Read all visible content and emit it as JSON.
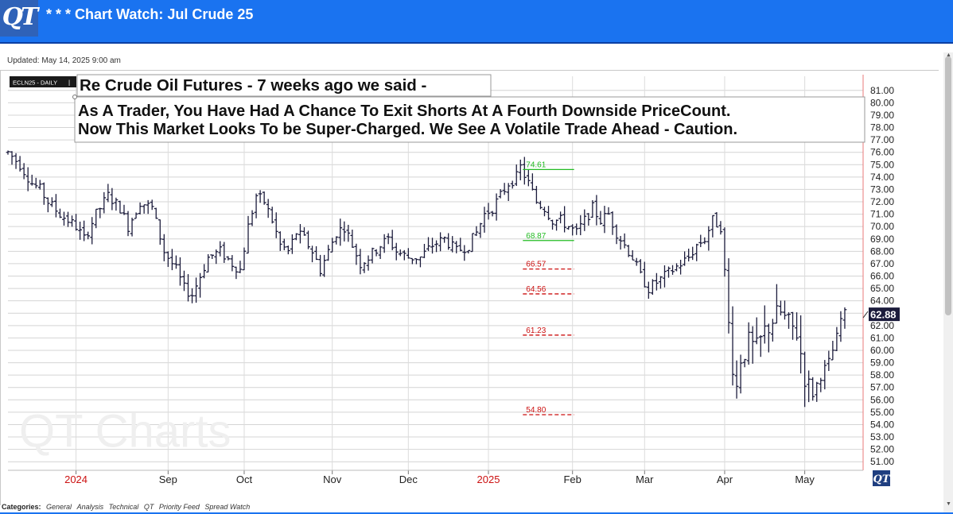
{
  "header": {
    "logo_text": "QT",
    "title": "* * * Chart Watch: Jul Crude 25",
    "updated": "Updated: May 14, 2025 9:00 am"
  },
  "footer": {
    "label": "Categories:",
    "items": [
      "General",
      "Analysis",
      "Technical",
      "QT",
      "Priority Feed",
      "Spread Watch"
    ]
  },
  "colors": {
    "header_bg": "#1a73f0",
    "bar_color": "#1c1c3c",
    "green_level": "#22bb22",
    "red_level": "#cc1111",
    "year_label": "#cc1111",
    "price_box": "#1c1c3c"
  },
  "chart_data": {
    "type": "ohlc",
    "symbol_label": "ECLN25 - DAILY",
    "annotation_lines": [
      "Re Crude Oil Futures - 7 weeks ago we said  -",
      "As A Trader, You Have Had A Chance To Exit Shorts At A Fourth Downside PriceCount.",
      "Now This Market Looks To be Super-Charged. We See A Volatile Trade Ahead - Caution."
    ],
    "watermark": "QT Charts",
    "corner_logo": "QT",
    "ylim": [
      50.5,
      81.5
    ],
    "yticks": [
      81,
      80,
      79,
      78,
      77,
      76,
      75,
      74,
      73,
      72,
      71,
      70,
      69,
      68,
      67,
      66,
      65,
      64,
      63,
      62,
      61,
      60,
      59,
      58,
      57,
      56,
      55,
      54,
      53,
      52,
      51
    ],
    "x_domain": [
      0,
      210
    ],
    "x_labels": [
      {
        "label": "2024",
        "x": 17,
        "year": true
      },
      {
        "label": "Sep",
        "x": 40
      },
      {
        "label": "Oct",
        "x": 59
      },
      {
        "label": "Nov",
        "x": 81
      },
      {
        "label": "Dec",
        "x": 100
      },
      {
        "label": "2025",
        "x": 120,
        "year": true
      },
      {
        "label": "Feb",
        "x": 141
      },
      {
        "label": "Mar",
        "x": 159
      },
      {
        "label": "Apr",
        "x": 179
      },
      {
        "label": "May",
        "x": 199
      }
    ],
    "last_price": "62.88",
    "last_value": 62.88,
    "levels": [
      {
        "label": "74.61",
        "value": 74.61,
        "kind": "resistance",
        "color": "green",
        "dashed": false
      },
      {
        "label": "68.87",
        "value": 68.87,
        "kind": "support",
        "color": "green",
        "dashed": false
      },
      {
        "label": "66.57",
        "value": 66.57,
        "kind": "target",
        "color": "red",
        "dashed": true
      },
      {
        "label": "64.56",
        "value": 64.56,
        "kind": "target",
        "color": "red",
        "dashed": true
      },
      {
        "label": "61.23",
        "value": 61.23,
        "kind": "target",
        "color": "red",
        "dashed": true
      },
      {
        "label": "54.80",
        "value": 54.8,
        "kind": "target",
        "color": "red",
        "dashed": true
      }
    ],
    "level_x_range": [
      128,
      141
    ],
    "price_path": [
      [
        0,
        76.0
      ],
      [
        3,
        75.0
      ],
      [
        6,
        73.5
      ],
      [
        8,
        73.0
      ],
      [
        10,
        72.0
      ],
      [
        13,
        71.0
      ],
      [
        15,
        70.5
      ],
      [
        17,
        70.0
      ],
      [
        19,
        69.0
      ],
      [
        22,
        71.0
      ],
      [
        25,
        72.5
      ],
      [
        28,
        71.5
      ],
      [
        30,
        70.0
      ],
      [
        33,
        72.0
      ],
      [
        36,
        71.5
      ],
      [
        39,
        68.0
      ],
      [
        42,
        66.5
      ],
      [
        44,
        65.0
      ],
      [
        46,
        64.5
      ],
      [
        48,
        66.0
      ],
      [
        50,
        67.5
      ],
      [
        53,
        68.0
      ],
      [
        56,
        67.0
      ],
      [
        58,
        66.5
      ],
      [
        60,
        70.0
      ],
      [
        62,
        72.5
      ],
      [
        64,
        72.0
      ],
      [
        66,
        70.5
      ],
      [
        68,
        68.5
      ],
      [
        70,
        68.0
      ],
      [
        72,
        69.5
      ],
      [
        74,
        69.0
      ],
      [
        76,
        68.0
      ],
      [
        78,
        66.5
      ],
      [
        80,
        68.0
      ],
      [
        82,
        69.5
      ],
      [
        84,
        70.0
      ],
      [
        86,
        68.5
      ],
      [
        88,
        67.0
      ],
      [
        90,
        67.5
      ],
      [
        93,
        68.5
      ],
      [
        95,
        69.0
      ],
      [
        97,
        68.0
      ],
      [
        100,
        67.5
      ],
      [
        103,
        67.5
      ],
      [
        106,
        68.5
      ],
      [
        109,
        69.0
      ],
      [
        112,
        68.0
      ],
      [
        115,
        68.5
      ],
      [
        117,
        69.5
      ],
      [
        119,
        71.0
      ],
      [
        121,
        71.5
      ],
      [
        123,
        72.5
      ],
      [
        125,
        73.5
      ],
      [
        127,
        74.0
      ],
      [
        128,
        74.8
      ],
      [
        130,
        73.5
      ],
      [
        132,
        72.0
      ],
      [
        134,
        71.5
      ],
      [
        136,
        70.5
      ],
      [
        138,
        70.5
      ],
      [
        140,
        70.0
      ],
      [
        142,
        69.5
      ],
      [
        144,
        70.5
      ],
      [
        146,
        71.5
      ],
      [
        148,
        70.5
      ],
      [
        150,
        71.0
      ],
      [
        152,
        69.5
      ],
      [
        154,
        68.5
      ],
      [
        156,
        67.5
      ],
      [
        158,
        66.0
      ],
      [
        160,
        65.0
      ],
      [
        162,
        65.5
      ],
      [
        164,
        66.0
      ],
      [
        166,
        66.5
      ],
      [
        168,
        67.0
      ],
      [
        170,
        67.5
      ],
      [
        172,
        68.5
      ],
      [
        174,
        69.0
      ],
      [
        176,
        70.5
      ],
      [
        178,
        70.0
      ],
      [
        179,
        66.0
      ],
      [
        180,
        62.0
      ],
      [
        181,
        59.0
      ],
      [
        182,
        57.0
      ],
      [
        183,
        59.5
      ],
      [
        185,
        60.5
      ],
      [
        187,
        60.0
      ],
      [
        189,
        61.5
      ],
      [
        191,
        62.5
      ],
      [
        193,
        63.0
      ],
      [
        195,
        62.0
      ],
      [
        197,
        61.5
      ],
      [
        199,
        58.0
      ],
      [
        200,
        57.0
      ],
      [
        201,
        56.5
      ],
      [
        203,
        58.0
      ],
      [
        205,
        59.0
      ],
      [
        207,
        61.0
      ],
      [
        208,
        62.5
      ],
      [
        209,
        62.88
      ]
    ]
  }
}
